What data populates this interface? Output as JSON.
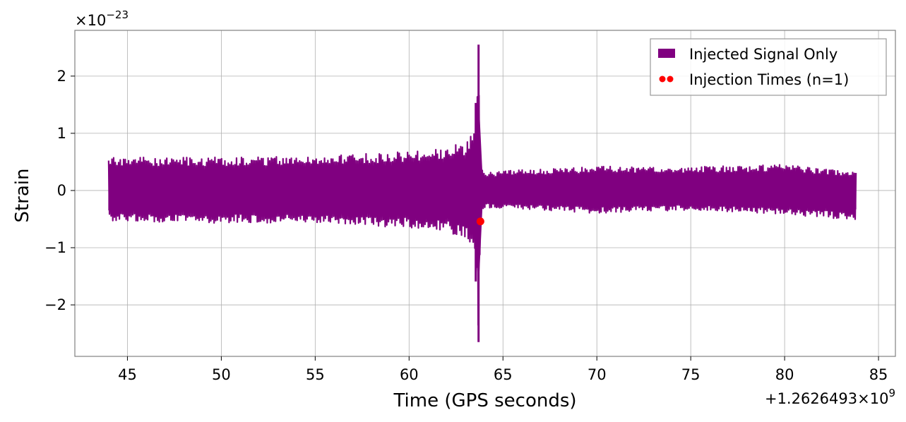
{
  "chart_data": {
    "type": "line",
    "xlabel": "Time (GPS seconds)",
    "ylabel": "Strain",
    "x_offset_label": "+1.2626493×10",
    "x_offset_exponent": "9",
    "y_scale_label": "×10",
    "y_scale_exponent": "−23",
    "xlim": [
      42.2,
      85.9
    ],
    "ylim": [
      -2.9,
      2.8
    ],
    "x_ticks": [
      45,
      50,
      55,
      60,
      65,
      70,
      75,
      80,
      85
    ],
    "x_tick_labels": [
      "45",
      "50",
      "55",
      "60",
      "65",
      "70",
      "75",
      "80",
      "85"
    ],
    "y_ticks": [
      -2,
      -1,
      0,
      1,
      2
    ],
    "y_tick_labels": [
      "−2",
      "−1",
      "0",
      "1",
      "2"
    ],
    "grid": true,
    "legend_position": "top-right",
    "series": [
      {
        "name": "Injected Signal Only",
        "kind": "strain",
        "color": "#800080",
        "x_range": [
          44.0,
          83.8
        ],
        "envelope": {
          "x": [
            44.0,
            50.0,
            55.0,
            60.0,
            62.0,
            63.0,
            63.5,
            63.7,
            63.8,
            64.0,
            67.0,
            70.0,
            75.0,
            80.0,
            83.8
          ],
          "upper": [
            0.58,
            0.58,
            0.6,
            0.68,
            0.75,
            0.85,
            1.1,
            2.55,
            0.4,
            0.32,
            0.38,
            0.42,
            0.42,
            0.45,
            0.32
          ],
          "lower": [
            -0.55,
            -0.57,
            -0.58,
            -0.65,
            -0.72,
            -0.85,
            -1.2,
            -2.65,
            -0.4,
            -0.3,
            -0.34,
            -0.4,
            -0.34,
            -0.42,
            -0.52
          ]
        }
      },
      {
        "name": "Injection Times (n=1)",
        "kind": "marker",
        "color": "#ff0000",
        "points": [
          [
            63.8,
            -0.54
          ]
        ]
      }
    ]
  }
}
